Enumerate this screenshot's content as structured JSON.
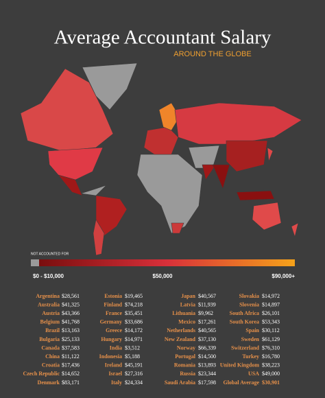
{
  "header": {
    "title": "Average Accountant Salary",
    "subtitle": "AROUND THE GLOBE"
  },
  "legend": {
    "missing_label": "NOT ACCOUNTED FOR",
    "labels": [
      "$0 - $10,000",
      "$50,000",
      "$90,000+"
    ]
  },
  "table": {
    "columns": [
      [
        [
          "Argentina",
          "$28,561"
        ],
        [
          "Australia",
          "$41,325"
        ],
        [
          "Austria",
          "$43,366"
        ],
        [
          "Belgium",
          "$41,768"
        ],
        [
          "Brazil",
          "$13,163"
        ],
        [
          "Bulgaria",
          "$25,133"
        ],
        [
          "Canada",
          "$37,583"
        ],
        [
          "China",
          "$11,122"
        ],
        [
          "Croatia",
          "$17,436"
        ],
        [
          "Czech Republic",
          "$14,652"
        ],
        [
          "Denmark",
          "$83,171"
        ]
      ],
      [
        [
          "Estonia",
          "$19,465"
        ],
        [
          "Finland",
          "$74,218"
        ],
        [
          "France",
          "$35,451"
        ],
        [
          "Germany",
          "$33,686"
        ],
        [
          "Greece",
          "$14,172"
        ],
        [
          "Hungary",
          "$14,971"
        ],
        [
          "India",
          "$3,512"
        ],
        [
          "Indonesia",
          "$5,188"
        ],
        [
          "Ireland",
          "$45,191"
        ],
        [
          "Israel",
          "$27,316"
        ],
        [
          "Italy",
          "$24,334"
        ]
      ],
      [
        [
          "Japan",
          "$40,567"
        ],
        [
          "Latvia",
          "$11,939"
        ],
        [
          "Lithuania",
          "$9,962"
        ],
        [
          "Mexico",
          "$17,261"
        ],
        [
          "Netherlands",
          "$40,565"
        ],
        [
          "New Zealand",
          "$37,130"
        ],
        [
          "Norway",
          "$66,339"
        ],
        [
          "Portugal",
          "$14,500"
        ],
        [
          "Romania",
          "$13,893"
        ],
        [
          "Russia",
          "$23,344"
        ],
        [
          "Saudi Arabia",
          "$17,598"
        ]
      ],
      [
        [
          "Slovakia",
          "$14,972"
        ],
        [
          "Slovenia",
          "$14,897"
        ],
        [
          "South Africa",
          "$26,101"
        ],
        [
          "South Korea",
          "$53,343"
        ],
        [
          "Spain",
          "$30,112"
        ],
        [
          "Sweden",
          "$61,129"
        ],
        [
          "Switzerland",
          "$76,310"
        ],
        [
          "Turkey",
          "$16,780"
        ],
        [
          "United Kingdom",
          "$38,223"
        ],
        [
          "USA",
          "$49,000"
        ],
        [
          "Global Average",
          "$30,901"
        ]
      ]
    ]
  }
}
